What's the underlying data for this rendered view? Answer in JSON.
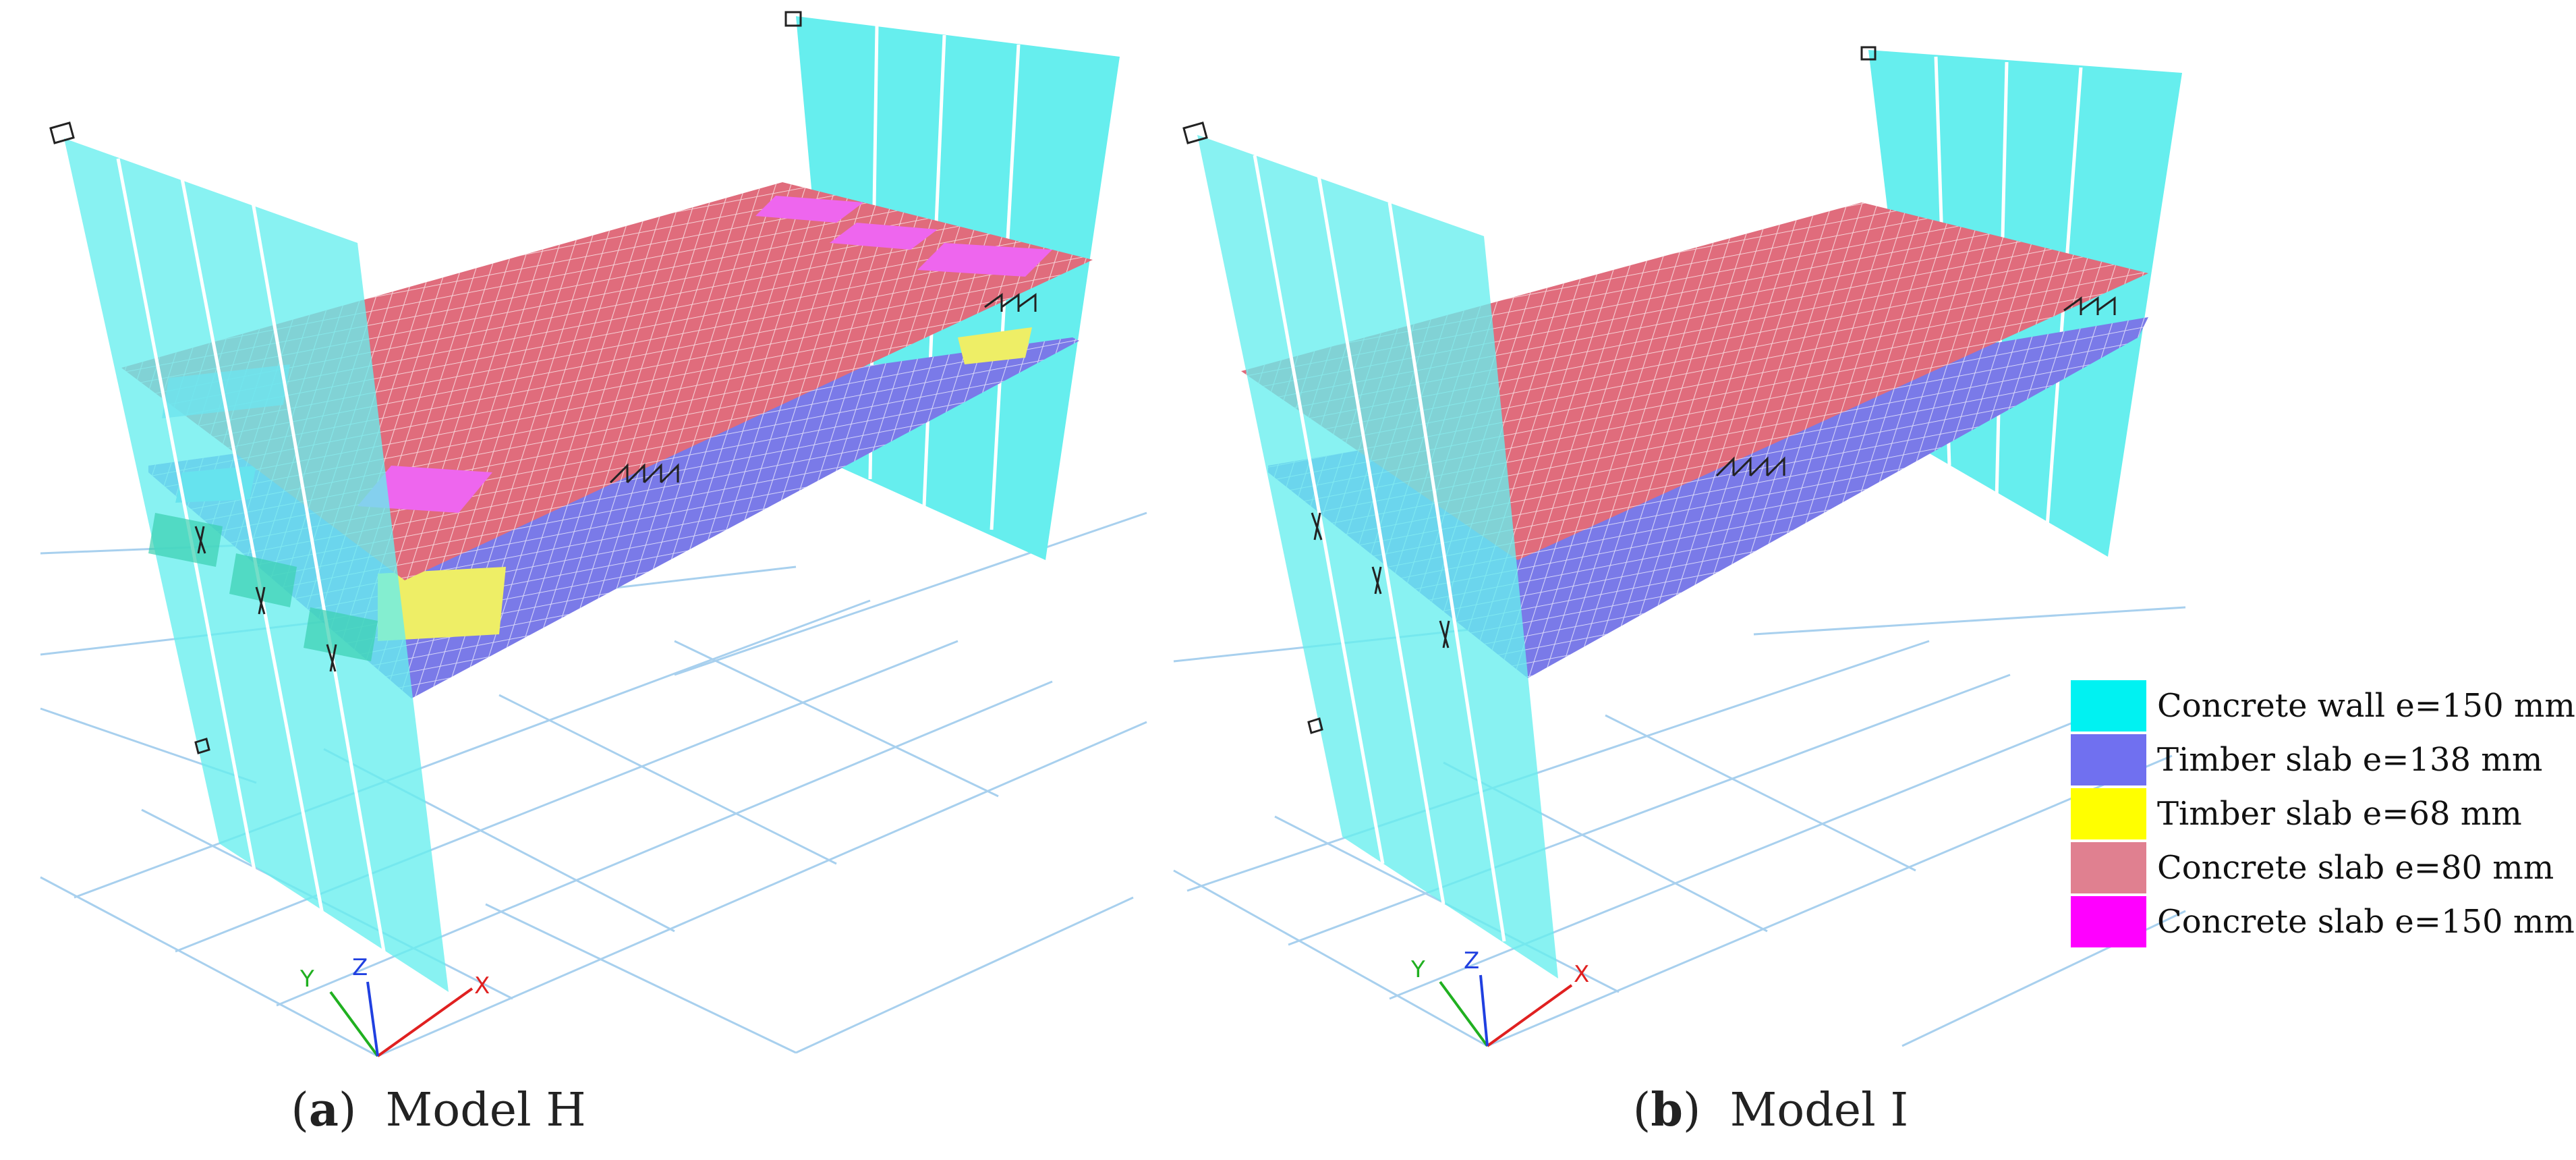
{
  "figure": {
    "panels": [
      {
        "id": "a",
        "label": "a",
        "title": "Model H"
      },
      {
        "id": "b",
        "label": "b",
        "title": "Model I"
      }
    ],
    "axes": {
      "x": "X",
      "y": "Y",
      "z": "Z"
    },
    "legend": [
      {
        "label": "Concrete wall e=150 mm",
        "color": "#00f2f2"
      },
      {
        "label": "Timber slab e=138 mm",
        "color": "#7070f0"
      },
      {
        "label": "Timber slab e=68 mm",
        "color": "#ffff00"
      },
      {
        "label": "Concrete slab e=80 mm",
        "color": "#e08090"
      },
      {
        "label": "Concrete slab e=150 mm",
        "color": "#ff00ff"
      }
    ],
    "colors": {
      "wall": "#66eeee",
      "timber_138": "#7a7ae8",
      "timber_68": "#eeee66",
      "concrete_80": "#e06c7c",
      "concrete_150": "#ee66ee",
      "grid": "#a8d0ee",
      "axis_x": "#e02020",
      "axis_y": "#20b020",
      "axis_z": "#2040e0"
    }
  }
}
